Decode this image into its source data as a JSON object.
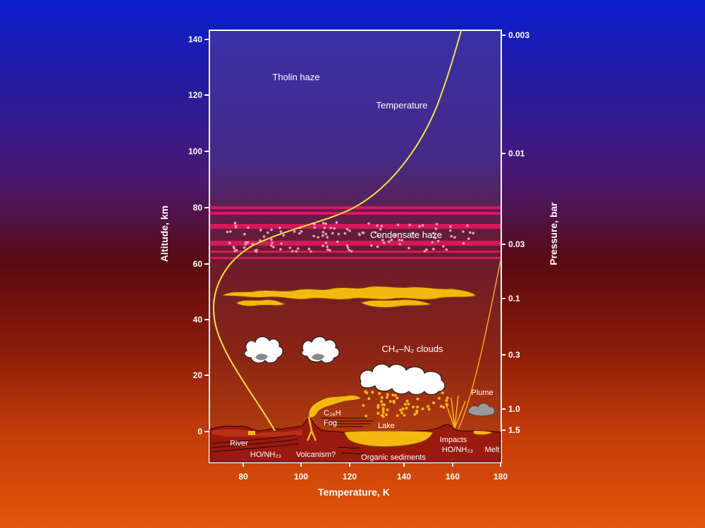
{
  "left_axis": {
    "title": "Altitude, km",
    "ticks": [
      "140",
      "120",
      "100",
      "80",
      "60",
      "40",
      "20",
      "0"
    ]
  },
  "right_axis": {
    "title": "Pressure, bar",
    "ticks": [
      "0.003",
      "0.01",
      "0.03",
      "0.1",
      "0.3",
      "1.0",
      "1.5"
    ]
  },
  "bottom_axis": {
    "title": "Temperature, K",
    "ticks": [
      "80",
      "100",
      "120",
      "140",
      "160",
      "180"
    ]
  },
  "labels": {
    "tholin_haze": "Tholin haze",
    "temperature": "Temperature",
    "condensate_haze": "Condensate haze",
    "clouds": "CH₄–N₂ clouds",
    "plume": "Plume",
    "fog": "C₂₆H",
    "fog2": "Fog",
    "lake": "Lake",
    "river": "River",
    "ho_nh3_left": "HO/NH₂₃",
    "volcanism": "Volcanism?",
    "organic_sediments": "Organic sediments",
    "impacts": "Impacts",
    "ho_nh3_right": "HO/NH₂₃",
    "melt": "Melt"
  },
  "colors": {
    "temperature_curve": "#f5e43a",
    "haze_bands": "#d6185a",
    "cloud_yellow": "#f5b80f",
    "ground": "#9a1a10"
  }
}
